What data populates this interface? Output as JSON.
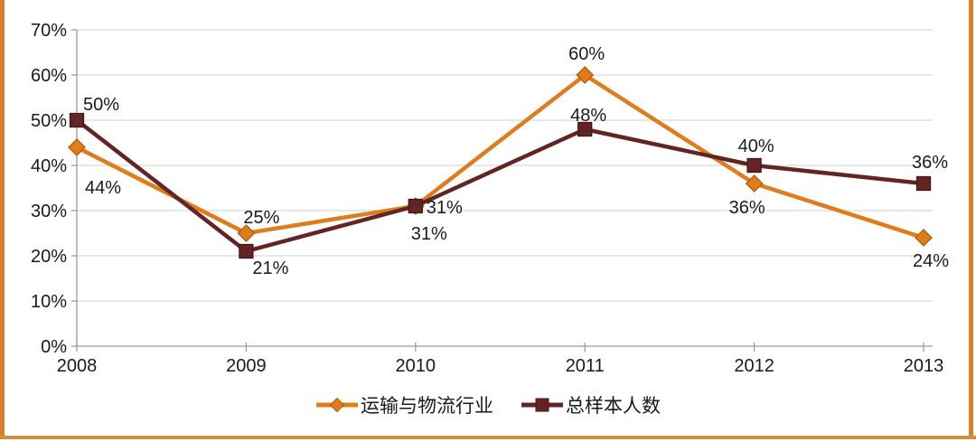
{
  "chart_data": {
    "type": "line",
    "title": "",
    "xlabel": "",
    "ylabel": "",
    "categories": [
      "2008",
      "2009",
      "2010",
      "2011",
      "2012",
      "2013"
    ],
    "series": [
      {
        "name": "运输与物流行业",
        "values": [
          44,
          25,
          31,
          60,
          36,
          24
        ],
        "point_labels": [
          "44%",
          "25%",
          "31%",
          "60%",
          "36%",
          "24%"
        ],
        "color": "#DF7C1B",
        "marker": "diamond",
        "marker_edge": "#B05E0D",
        "label_offsets": [
          [
            29,
            44
          ],
          [
            17,
            -18
          ],
          [
            15,
            30
          ],
          [
            2,
            -24
          ],
          [
            -8,
            26
          ],
          [
            8,
            25
          ]
        ]
      },
      {
        "name": "总样本人数",
        "values": [
          50,
          21,
          31,
          48,
          40,
          36
        ],
        "point_labels": [
          "50%",
          "21%",
          "31%",
          "48%",
          "40%",
          "36%"
        ],
        "color": "#632523",
        "marker": "square",
        "marker_edge": "#471614",
        "label_offsets": [
          [
            27,
            -18
          ],
          [
            27,
            18
          ],
          [
            32,
            1
          ],
          [
            4,
            -16
          ],
          [
            2,
            -22
          ],
          [
            7,
            -24
          ]
        ]
      }
    ],
    "ylim": [
      0,
      70
    ],
    "ytick_step": 10,
    "ytick_labels": [
      "0%",
      "10%",
      "20%",
      "30%",
      "40%",
      "50%",
      "60%",
      "70%"
    ],
    "grid": true,
    "legend_position": "bottom"
  },
  "style": {
    "grid_color": "#D9D9D9",
    "axis_color": "#9C9C9C",
    "text_color": "#1A1A1A",
    "background": "#FFFFFF",
    "border_side_color": "#DB7D2D",
    "border_bottom_color": "#CE9140"
  }
}
